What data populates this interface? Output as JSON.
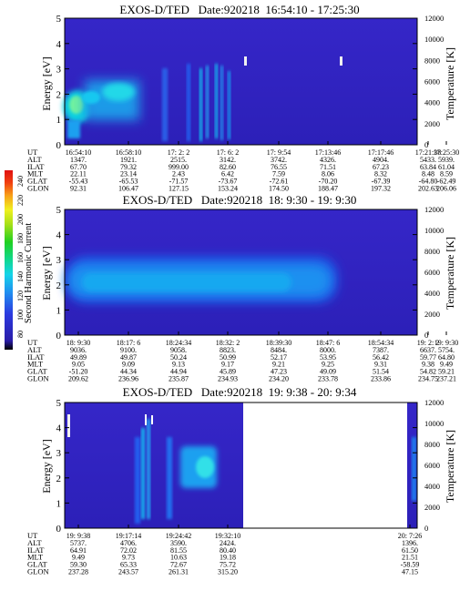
{
  "colorbar": {
    "label": "Second Harmonic Current",
    "ticks": [
      "240",
      "220",
      "200",
      "180",
      "160",
      "140",
      "120",
      "100",
      "80"
    ]
  },
  "chart_data": [
    {
      "type": "heatmap",
      "title": "EXOS-D/TED   Date:920218  16:54:10 - 17:25:30",
      "ylabel": "Energy [eV]",
      "y2label": "Temperature [K]",
      "ylim": [
        0,
        5
      ],
      "yticks": [
        "0",
        "1",
        "2",
        "3",
        "4",
        "5"
      ],
      "y2lim": [
        0,
        12000
      ],
      "y2ticks": [
        "0",
        "2000",
        "4000",
        "6000",
        "8000",
        "10000",
        "12000"
      ],
      "row_labels": [
        "UT",
        "ALT",
        "ILAT",
        "MLT",
        "GLAT",
        "GLON"
      ],
      "columns": [
        {
          "UT": "16:54:10",
          "ALT": "1347.",
          "ILAT": "67.70",
          "MLT": "22.11",
          "GLAT": "-55.43",
          "GLON": "92.31"
        },
        {
          "UT": "16:58:10",
          "ALT": "1921.",
          "ILAT": "79.32",
          "MLT": "23.14",
          "GLAT": "-65.53",
          "GLON": "106.47"
        },
        {
          "UT": "17: 2: 2",
          "ALT": "2515.",
          "ILAT": "999.00",
          "MLT": "2.43",
          "GLAT": "-71.57",
          "GLON": "127.15"
        },
        {
          "UT": "17: 6: 2",
          "ALT": "3142.",
          "ILAT": "82.60",
          "MLT": "6.42",
          "GLAT": "-73.67",
          "GLON": "153.24"
        },
        {
          "UT": "17: 9:54",
          "ALT": "3742.",
          "ILAT": "76.55",
          "MLT": "7.59",
          "GLAT": "-72.61",
          "GLON": "174.50"
        },
        {
          "UT": "17:13:46",
          "ALT": "4326.",
          "ILAT": "71.51",
          "MLT": "8.06",
          "GLAT": "-70.20",
          "GLON": "188.47"
        },
        {
          "UT": "17:17:46",
          "ALT": "4904.",
          "ILAT": "67.23",
          "MLT": "8.32",
          "GLAT": "-67.39",
          "GLON": "197.32"
        },
        {
          "UT": "17:21:38",
          "ALT": "5433.",
          "ILAT": "63.84",
          "MLT": "8.48",
          "GLAT": "-64.80",
          "GLON": "202.63"
        },
        {
          "UT": "17:25:30",
          "ALT": "5939.",
          "ILAT": "61.04",
          "MLT": "8.59",
          "GLAT": "-62.49",
          "GLON": "206.06"
        }
      ]
    },
    {
      "type": "heatmap",
      "title": "EXOS-D/TED   Date:920218  18: 9:30 - 19: 9:30",
      "ylabel": "Energy [eV]",
      "y2label": "Temperature [K]",
      "ylim": [
        0,
        5
      ],
      "yticks": [
        "0",
        "1",
        "2",
        "3",
        "4",
        "5"
      ],
      "y2lim": [
        0,
        12000
      ],
      "y2ticks": [
        "0",
        "2000",
        "4000",
        "6000",
        "8000",
        "10000",
        "12000"
      ],
      "row_labels": [
        "UT",
        "ALT",
        "ILAT",
        "MLT",
        "GLAT",
        "GLON"
      ],
      "columns": [
        {
          "UT": "18: 9:30",
          "ALT": "9036.",
          "ILAT": "49.89",
          "MLT": "9.05",
          "GLAT": "-51.20",
          "GLON": "209.62"
        },
        {
          "UT": "18:17: 6",
          "ALT": "9100.",
          "ILAT": "49.87",
          "MLT": "9.09",
          "GLAT": "44.34",
          "GLON": "236.96"
        },
        {
          "UT": "18:24:34",
          "ALT": "9058.",
          "ILAT": "50.24",
          "MLT": "9.13",
          "GLAT": "44.94",
          "GLON": "235.87"
        },
        {
          "UT": "18:32: 2",
          "ALT": "8823.",
          "ILAT": "50.99",
          "MLT": "9.17",
          "GLAT": "45.89",
          "GLON": "234.93"
        },
        {
          "UT": "18:39:30",
          "ALT": "8484.",
          "ILAT": "52.17",
          "MLT": "9.21",
          "GLAT": "47.23",
          "GLON": "234.20"
        },
        {
          "UT": "18:47: 6",
          "ALT": "8000.",
          "ILAT": "53.95",
          "MLT": "9.25",
          "GLAT": "49.09",
          "GLON": "233.78"
        },
        {
          "UT": "18:54:34",
          "ALT": "7387.",
          "ILAT": "56.42",
          "MLT": "9.31",
          "GLAT": "51.54",
          "GLON": "233.86"
        },
        {
          "UT": "19: 2: 2",
          "ALT": "6637.",
          "ILAT": "59.77",
          "MLT": "9.38",
          "GLAT": "54.82",
          "GLON": "234.75"
        },
        {
          "UT": "19: 9:30",
          "ALT": "5754.",
          "ILAT": "64.80",
          "MLT": "9.49",
          "GLAT": "59.21",
          "GLON": "237.21"
        }
      ]
    },
    {
      "type": "heatmap",
      "title": "EXOS-D/TED   Date:920218  19: 9:38 - 20: 9:34",
      "ylabel": "Energy [eV]",
      "y2label": "Temperature [K]",
      "ylim": [
        0,
        5
      ],
      "yticks": [
        "0",
        "1",
        "2",
        "3",
        "4",
        "5"
      ],
      "y2lim": [
        0,
        12000
      ],
      "y2ticks": [
        "0",
        "2000",
        "4000",
        "6000",
        "8000",
        "10000",
        "12000"
      ],
      "row_labels": [
        "UT",
        "ALT",
        "ILAT",
        "MLT",
        "GLAT",
        "GLON"
      ],
      "columns": [
        {
          "UT": "19: 9:38",
          "ALT": "5737.",
          "ILAT": "64.91",
          "MLT": "9.49",
          "GLAT": "59.30",
          "GLON": "237.28"
        },
        {
          "UT": "19:17:14",
          "ALT": "4706.",
          "ILAT": "72.02",
          "MLT": "9.73",
          "GLAT": "65.33",
          "GLON": "243.57"
        },
        {
          "UT": "19:24:42",
          "ALT": "3590.",
          "ILAT": "81.55",
          "MLT": "10.63",
          "GLAT": "72.67",
          "GLON": "261.31"
        },
        {
          "UT": "19:32:10",
          "ALT": "2424.",
          "ILAT": "80.40",
          "MLT": "19.18",
          "GLAT": "75.72",
          "GLON": "315.20"
        },
        {
          "UT": "20: 7:26",
          "ALT": "1396.",
          "ILAT": "61.50",
          "MLT": "21.51",
          "GLAT": "-58.59",
          "GLON": "47.15"
        }
      ]
    }
  ]
}
